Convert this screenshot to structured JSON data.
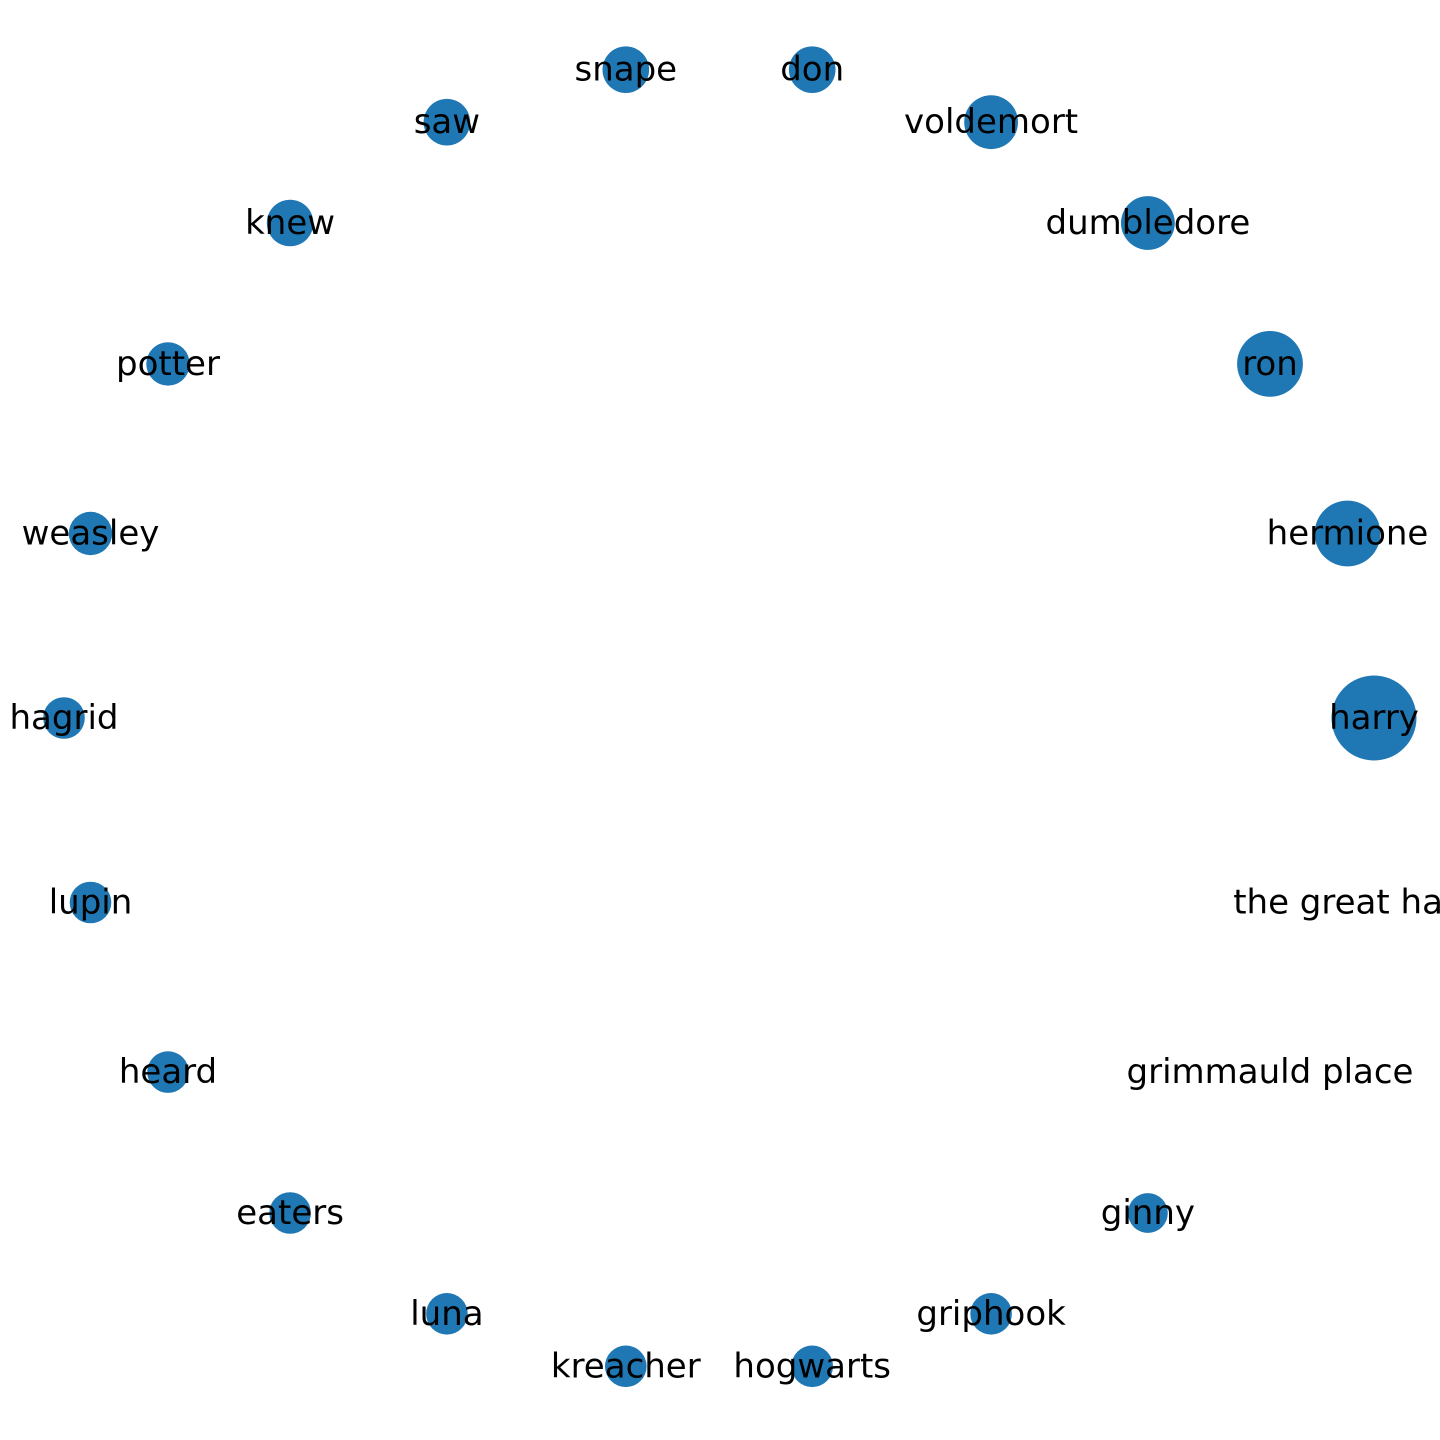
{
  "graph": {
    "node_color": "#1f77b4",
    "label_color": "#000000",
    "nodes": [
      {
        "label": "harry",
        "size": 5
      },
      {
        "label": "hermione",
        "size": 3
      },
      {
        "label": "ron",
        "size": 3
      },
      {
        "label": "dumbledore",
        "size": 2
      },
      {
        "label": "voldemort",
        "size": 2
      },
      {
        "label": "don",
        "size": 1.5
      },
      {
        "label": "snape",
        "size": 1.5
      },
      {
        "label": "saw",
        "size": 1.5
      },
      {
        "label": "knew",
        "size": 1.5
      },
      {
        "label": "potter",
        "size": 1.3
      },
      {
        "label": "weasley",
        "size": 1.3
      },
      {
        "label": "hagrid",
        "size": 1.2
      },
      {
        "label": "lupin",
        "size": 1.2
      },
      {
        "label": "heard",
        "size": 1.2
      },
      {
        "label": "eaters",
        "size": 1.2
      },
      {
        "label": "luna",
        "size": 1.2
      },
      {
        "label": "kreacher",
        "size": 1.2
      },
      {
        "label": "hogwarts",
        "size": 1.2
      },
      {
        "label": "griphook",
        "size": 1.2
      },
      {
        "label": "ginny",
        "size": 1.1
      },
      {
        "label": "grimmauld place",
        "size": 0
      },
      {
        "label": "the great hall",
        "size": 0
      }
    ]
  }
}
